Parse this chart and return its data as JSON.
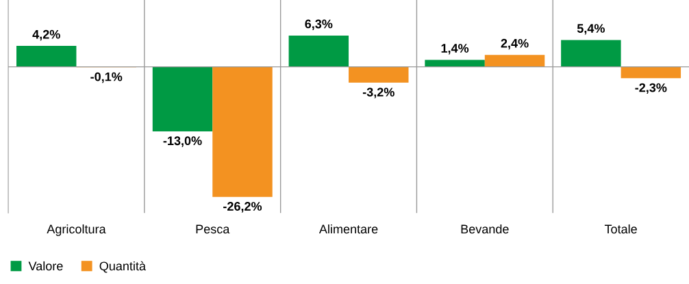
{
  "chart_data": {
    "type": "bar",
    "categories": [
      "Agricoltura",
      "Pesca",
      "Alimentare",
      "Bevande",
      "Totale"
    ],
    "series": [
      {
        "name": "Valore",
        "color": "#009a44",
        "values": [
          4.2,
          -13.0,
          6.3,
          1.4,
          5.4
        ],
        "value_labels": [
          "4,2%",
          "-13,0%",
          "6,3%",
          "1,4%",
          "5,4%"
        ]
      },
      {
        "name": "Quantità",
        "color": "#f39221",
        "values": [
          -0.1,
          -26.2,
          -3.2,
          2.4,
          -2.3
        ],
        "value_labels": [
          "-0,1%",
          "-26,2%",
          "-3,2%",
          "2,4%",
          "-2,3%"
        ]
      }
    ],
    "grid": "x",
    "legend": "bottom left"
  }
}
